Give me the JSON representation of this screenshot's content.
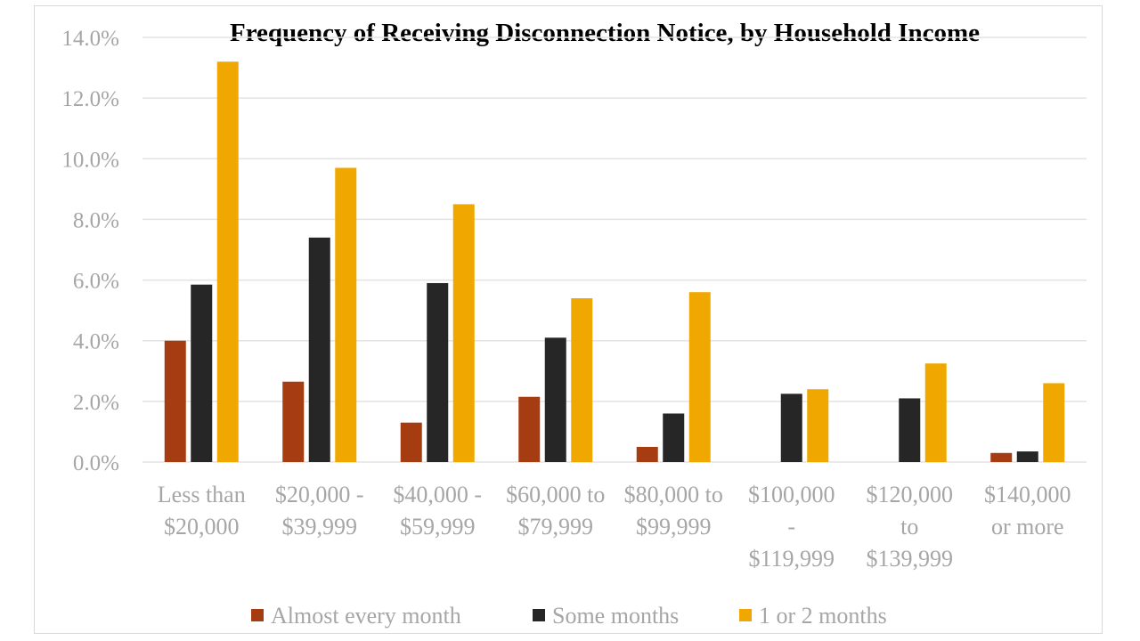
{
  "chart_data": {
    "type": "bar",
    "title": "Frequency of Receiving Disconnection Notice, by Household Income",
    "xlabel": "",
    "ylabel": "",
    "ylim": [
      0,
      14
    ],
    "y_ticks": [
      "0.0%",
      "2.0%",
      "4.0%",
      "6.0%",
      "8.0%",
      "10.0%",
      "12.0%",
      "14.0%"
    ],
    "y_tick_values": [
      0,
      2,
      4,
      6,
      8,
      10,
      12,
      14
    ],
    "grid": true,
    "legend_position": "bottom",
    "categories": [
      [
        "Less than",
        "$20,000"
      ],
      [
        "$20,000 -",
        "$39,999"
      ],
      [
        "$40,000 -",
        "$59,999"
      ],
      [
        "$60,000 to",
        "$79,999"
      ],
      [
        "$80,000 to",
        "$99,999"
      ],
      [
        "$100,000",
        "-",
        "$119,999"
      ],
      [
        "$120,000",
        "to",
        "$139,999"
      ],
      [
        "$140,000",
        "or more"
      ]
    ],
    "series": [
      {
        "name": "Almost every month",
        "color": "#a63c12",
        "values": [
          4.0,
          2.65,
          1.3,
          2.15,
          0.5,
          0,
          0,
          0.3
        ]
      },
      {
        "name": "Some months",
        "color": "#262626",
        "values": [
          5.85,
          7.4,
          5.9,
          4.1,
          1.6,
          2.25,
          2.1,
          0.35
        ]
      },
      {
        "name": "1 or 2 months",
        "color": "#f0a800",
        "values": [
          13.2,
          9.7,
          8.5,
          5.4,
          5.6,
          2.4,
          3.25,
          2.6
        ]
      }
    ]
  }
}
